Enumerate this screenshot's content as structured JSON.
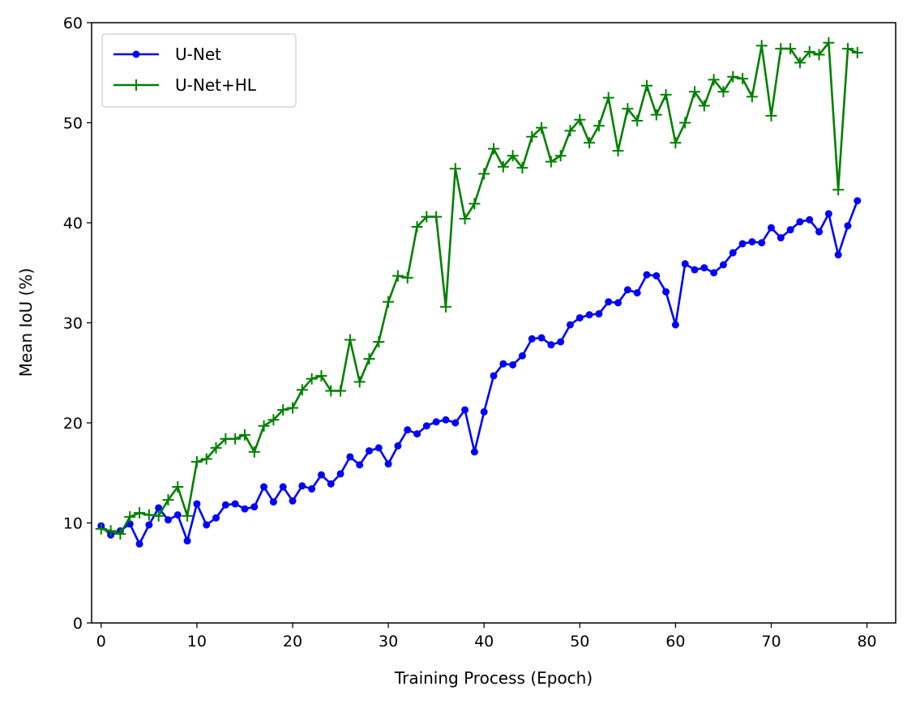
{
  "chart_data": {
    "type": "line",
    "title": "",
    "xlabel": "Training Process (Epoch)",
    "ylabel": "Mean IoU (%)",
    "xlim": [
      -1,
      83
    ],
    "ylim": [
      0,
      60
    ],
    "xticks": [
      0,
      10,
      20,
      30,
      40,
      50,
      60,
      70,
      80
    ],
    "yticks": [
      0,
      10,
      20,
      30,
      40,
      50,
      60
    ],
    "xtick_labels": [
      "0",
      "10",
      "20",
      "30",
      "40",
      "50",
      "60",
      "70",
      "80"
    ],
    "ytick_labels": [
      "0",
      "10",
      "20",
      "30",
      "40",
      "50",
      "60"
    ],
    "grid": false,
    "legend_position": "top-left",
    "series": [
      {
        "name": "U-Net",
        "color": "#0000ff",
        "marker": "dot",
        "x": [
          0,
          1,
          2,
          3,
          4,
          5,
          6,
          7,
          8,
          9,
          10,
          11,
          12,
          13,
          14,
          15,
          16,
          17,
          18,
          19,
          20,
          21,
          22,
          23,
          24,
          25,
          26,
          27,
          28,
          29,
          30,
          31,
          32,
          33,
          34,
          35,
          36,
          37,
          38,
          39,
          40,
          41,
          42,
          43,
          44,
          45,
          46,
          47,
          48,
          49,
          50,
          51,
          52,
          53,
          54,
          55,
          56,
          57,
          58,
          59,
          60,
          61,
          62,
          63,
          64,
          65,
          66,
          67,
          68,
          69,
          70,
          71,
          72,
          73,
          74,
          75,
          76,
          77,
          78,
          79
        ],
        "values": [
          9.7,
          8.8,
          9.2,
          9.9,
          7.9,
          9.8,
          11.5,
          10.3,
          10.8,
          8.2,
          11.9,
          9.8,
          10.5,
          11.8,
          11.9,
          11.4,
          11.6,
          13.6,
          12.1,
          13.6,
          12.2,
          13.7,
          13.4,
          14.8,
          13.9,
          14.9,
          16.6,
          15.8,
          17.2,
          17.5,
          15.9,
          17.7,
          19.3,
          18.9,
          19.7,
          20.1,
          20.3,
          20.0,
          21.3,
          17.1,
          21.1,
          24.7,
          25.9,
          25.8,
          26.7,
          28.4,
          28.5,
          27.8,
          28.1,
          29.8,
          30.5,
          30.8,
          30.9,
          32.1,
          32.0,
          33.3,
          33.0,
          34.8,
          34.7,
          33.1,
          29.8,
          35.9,
          35.3,
          35.5,
          35.0,
          35.8,
          37.0,
          37.9,
          38.1,
          38.0,
          39.5,
          38.5,
          39.3,
          40.1,
          40.3,
          39.1,
          40.9,
          36.8,
          39.7,
          42.2
        ]
      },
      {
        "name": "U-Net+HL",
        "color": "#008000",
        "marker": "plus",
        "x": [
          0,
          1,
          2,
          3,
          4,
          5,
          6,
          7,
          8,
          9,
          10,
          11,
          12,
          13,
          14,
          15,
          16,
          17,
          18,
          19,
          20,
          21,
          22,
          23,
          24,
          25,
          26,
          27,
          28,
          29,
          30,
          31,
          32,
          33,
          34,
          35,
          36,
          37,
          38,
          39,
          40,
          41,
          42,
          43,
          44,
          45,
          46,
          47,
          48,
          49,
          50,
          51,
          52,
          53,
          54,
          55,
          56,
          57,
          58,
          59,
          60,
          61,
          62,
          63,
          64,
          65,
          66,
          67,
          68,
          69,
          70,
          71,
          72,
          73,
          74,
          75,
          76,
          77,
          78,
          79
        ],
        "values": [
          9.4,
          9.2,
          8.9,
          10.6,
          11.0,
          10.8,
          10.7,
          12.3,
          13.6,
          10.7,
          16.1,
          16.4,
          17.5,
          18.4,
          18.4,
          18.8,
          17.1,
          19.7,
          20.3,
          21.3,
          21.5,
          23.3,
          24.4,
          24.7,
          23.2,
          23.2,
          28.3,
          24.1,
          26.4,
          28.1,
          32.1,
          34.7,
          34.5,
          39.6,
          40.6,
          40.6,
          31.6,
          45.4,
          40.4,
          41.9,
          44.9,
          47.4,
          45.6,
          46.7,
          45.5,
          48.6,
          49.5,
          46.1,
          46.7,
          49.2,
          50.3,
          48.0,
          49.7,
          52.5,
          47.2,
          51.4,
          50.2,
          53.7,
          50.8,
          52.8,
          48.0,
          50.0,
          53.1,
          51.7,
          54.3,
          53.1,
          54.6,
          54.4,
          52.6,
          57.7,
          50.7,
          57.4,
          57.4,
          56.0,
          57.1,
          56.8,
          58.0,
          43.3,
          57.4,
          57.0
        ]
      }
    ]
  }
}
